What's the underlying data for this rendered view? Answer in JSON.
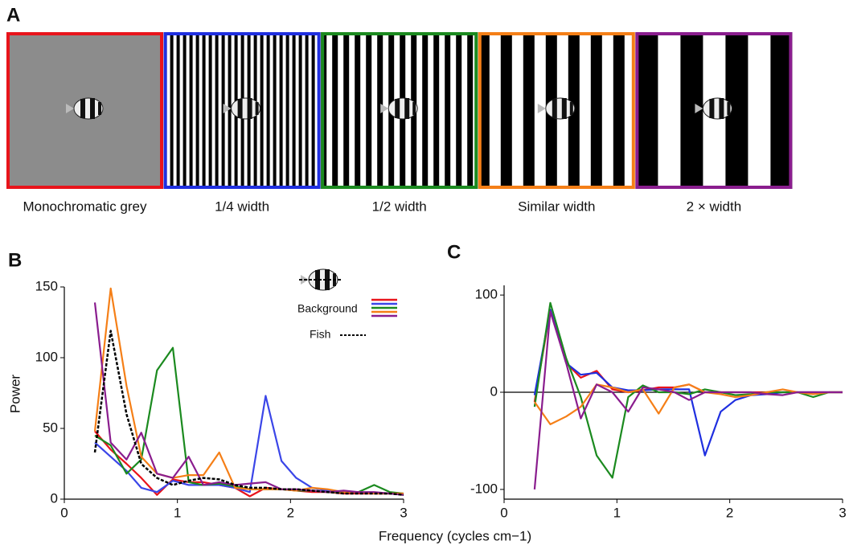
{
  "panel_a": {
    "label": "A",
    "images": [
      {
        "caption": "Monochromatic grey",
        "border": "#e8141b"
      },
      {
        "caption": "1/4 width",
        "border": "#1f2fe0"
      },
      {
        "caption": "1/2 width",
        "border": "#1b8a1f"
      },
      {
        "caption": "Similar width",
        "border": "#f57f17"
      },
      {
        "caption": "2 × width",
        "border": "#8a1d8e"
      }
    ]
  },
  "chart_data": [
    {
      "type": "line",
      "label": "B",
      "ylabel": "Power",
      "xlabel": "Frequency (cycles cm−1)",
      "xlim": [
        0,
        3
      ],
      "ylim": [
        0,
        150
      ],
      "xticks": [
        0,
        1,
        2,
        3
      ],
      "yticks": [
        0,
        50,
        100,
        150
      ],
      "background_label": "Background",
      "x": [
        0.27,
        0.41,
        0.55,
        0.68,
        0.82,
        0.96,
        1.1,
        1.23,
        1.37,
        1.51,
        1.64,
        1.78,
        1.92,
        2.05,
        2.19,
        2.33,
        2.47,
        2.6,
        2.74,
        2.88,
        3.0
      ],
      "series": [
        {
          "color": "#e8141b",
          "values": [
            48,
            35,
            25,
            15,
            3,
            14,
            12,
            12,
            10,
            8,
            2,
            8,
            7,
            6,
            5,
            5,
            4,
            4,
            4,
            4,
            3
          ]
        },
        {
          "color": "#3b46e8",
          "values": [
            40,
            30,
            20,
            8,
            5,
            13,
            10,
            10,
            10,
            8,
            5,
            73,
            27,
            15,
            8,
            6,
            5,
            5,
            4,
            4,
            3
          ]
        },
        {
          "color": "#1b8a1f",
          "values": [
            45,
            38,
            18,
            28,
            91,
            107,
            12,
            10,
            11,
            9,
            7,
            7,
            7,
            6,
            6,
            5,
            5,
            5,
            10,
            5,
            4
          ]
        },
        {
          "color": "#f57f17",
          "values": [
            48,
            149,
            80,
            30,
            18,
            15,
            17,
            17,
            33,
            8,
            7,
            7,
            7,
            6,
            8,
            7,
            5,
            5,
            4,
            4,
            4
          ]
        },
        {
          "color": "#8a1d8e",
          "values": [
            139,
            40,
            28,
            47,
            18,
            15,
            30,
            10,
            12,
            10,
            11,
            12,
            7,
            7,
            6,
            5,
            6,
            5,
            5,
            4,
            3
          ]
        },
        {
          "name": "Fish",
          "color": "#000000",
          "dash": true,
          "values": [
            33,
            119,
            60,
            25,
            15,
            10,
            13,
            15,
            14,
            10,
            8,
            8,
            7,
            7,
            6,
            5,
            4,
            4,
            4,
            4,
            3
          ]
        }
      ]
    },
    {
      "type": "line",
      "label": "C",
      "xlim": [
        0,
        3
      ],
      "ylim": [
        -110,
        110
      ],
      "xticks": [
        0,
        1,
        2,
        3
      ],
      "yticks": [
        -100,
        0,
        100
      ],
      "zero_line": true,
      "x": [
        0.27,
        0.41,
        0.55,
        0.68,
        0.82,
        0.96,
        1.1,
        1.23,
        1.37,
        1.51,
        1.64,
        1.78,
        1.92,
        2.05,
        2.19,
        2.33,
        2.47,
        2.6,
        2.74,
        2.88,
        3.0
      ],
      "series": [
        {
          "color": "#e8141b",
          "values": [
            -10,
            85,
            30,
            15,
            22,
            3,
            0,
            2,
            5,
            5,
            8,
            0,
            0,
            0,
            0,
            0,
            0,
            0,
            0,
            0,
            0
          ]
        },
        {
          "color": "#1f2fe0",
          "values": [
            -3,
            85,
            30,
            18,
            20,
            5,
            2,
            2,
            3,
            3,
            3,
            -65,
            -20,
            -8,
            -3,
            -2,
            0,
            0,
            0,
            0,
            0
          ]
        },
        {
          "color": "#1b8a1f",
          "values": [
            -15,
            92,
            35,
            -5,
            -65,
            -88,
            -5,
            7,
            0,
            0,
            -2,
            3,
            0,
            -3,
            -2,
            0,
            0,
            0,
            -5,
            0,
            0
          ]
        },
        {
          "color": "#f57f17",
          "values": [
            -10,
            -33,
            -25,
            -15,
            8,
            5,
            0,
            3,
            -22,
            5,
            8,
            0,
            -2,
            -5,
            -3,
            0,
            3,
            0,
            -2,
            0,
            0
          ]
        },
        {
          "color": "#8a1d8e",
          "values": [
            -100,
            83,
            30,
            -27,
            8,
            0,
            -20,
            5,
            3,
            0,
            -8,
            0,
            0,
            0,
            0,
            -2,
            -3,
            0,
            0,
            0,
            0
          ]
        }
      ]
    }
  ]
}
